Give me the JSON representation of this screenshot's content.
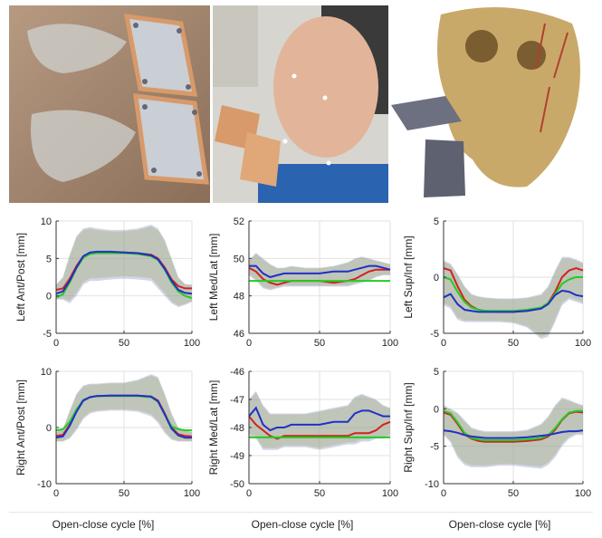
{
  "photos": [
    {
      "name": "mouthguard-plates-photo"
    },
    {
      "name": "subject-with-jaw-tracking-plates-photo"
    },
    {
      "name": "skull-3d-model-render"
    }
  ],
  "xlabels": [
    "Open-close cycle [%]",
    "Open-close cycle [%]",
    "Open-close cycle [%]"
  ],
  "colors": {
    "red": "#d42020",
    "green": "#22cc22",
    "blue": "#2030c8"
  },
  "chart_data": [
    {
      "type": "line",
      "ylabel": "Left Ant/Post [mm]",
      "ylim": [
        -5,
        10
      ],
      "yticks": [
        -5,
        0,
        5,
        10
      ],
      "xlim": [
        0,
        100
      ],
      "xticks": [
        0,
        50,
        100
      ],
      "grid": true,
      "x": [
        0,
        5,
        10,
        15,
        20,
        25,
        30,
        40,
        50,
        60,
        70,
        75,
        80,
        85,
        90,
        95,
        100
      ],
      "series": [
        {
          "color": "red",
          "values": [
            0.8,
            1.0,
            2.3,
            4.0,
            5.3,
            5.7,
            5.8,
            5.8,
            5.8,
            5.7,
            5.5,
            5.0,
            3.8,
            2.2,
            1.3,
            1.0,
            1.0
          ]
        },
        {
          "color": "green",
          "values": [
            -0.2,
            0.2,
            1.8,
            3.7,
            5.1,
            5.6,
            5.7,
            5.7,
            5.7,
            5.6,
            5.3,
            4.8,
            3.5,
            1.8,
            0.6,
            0.0,
            -0.3
          ]
        },
        {
          "color": "blue",
          "values": [
            0.3,
            0.6,
            2.0,
            3.8,
            5.3,
            5.8,
            5.9,
            5.9,
            5.8,
            5.7,
            5.4,
            4.9,
            3.6,
            2.0,
            0.8,
            0.4,
            0.3
          ]
        }
      ],
      "band": {
        "upper": [
          1.5,
          2.5,
          5.5,
          8.0,
          9.0,
          9.2,
          9.0,
          8.8,
          8.8,
          9.0,
          9.5,
          9.0,
          7.5,
          5.0,
          2.5,
          1.6,
          1.5
        ],
        "lower": [
          -0.5,
          -0.5,
          -1.0,
          0.0,
          1.5,
          2.0,
          2.0,
          2.2,
          2.3,
          2.2,
          2.0,
          1.0,
          0.0,
          -1.0,
          -1.5,
          -1.2,
          -0.8
        ]
      }
    },
    {
      "type": "line",
      "ylabel": "Left Med/Lat [mm]",
      "ylim": [
        46,
        52
      ],
      "yticks": [
        46,
        48,
        50,
        52
      ],
      "xlim": [
        0,
        100
      ],
      "xticks": [
        0,
        50,
        100
      ],
      "grid": true,
      "x": [
        0,
        5,
        10,
        15,
        20,
        25,
        30,
        40,
        50,
        60,
        70,
        75,
        80,
        85,
        90,
        95,
        100
      ],
      "series": [
        {
          "color": "red",
          "values": [
            49.5,
            49.3,
            48.9,
            48.7,
            48.6,
            48.7,
            48.8,
            48.8,
            48.8,
            48.7,
            48.8,
            48.9,
            49.1,
            49.3,
            49.4,
            49.4,
            49.4
          ]
        },
        {
          "color": "green",
          "values": [
            48.8,
            48.8,
            48.8,
            48.8,
            48.8,
            48.8,
            48.8,
            48.8,
            48.8,
            48.8,
            48.8,
            48.8,
            48.8,
            48.8,
            48.8,
            48.8,
            48.8
          ]
        },
        {
          "color": "blue",
          "values": [
            49.6,
            49.6,
            49.2,
            49.0,
            49.1,
            49.2,
            49.2,
            49.2,
            49.2,
            49.3,
            49.3,
            49.4,
            49.5,
            49.6,
            49.6,
            49.5,
            49.4
          ]
        }
      ],
      "band": {
        "upper": [
          49.9,
          50.3,
          50.0,
          49.7,
          49.5,
          49.5,
          49.6,
          49.5,
          49.5,
          49.6,
          49.8,
          50.0,
          50.1,
          50.0,
          49.9,
          49.8,
          49.7
        ],
        "lower": [
          49.1,
          48.8,
          48.4,
          48.3,
          48.4,
          48.5,
          48.5,
          48.5,
          48.5,
          48.5,
          48.5,
          48.6,
          48.7,
          48.8,
          49.0,
          49.1,
          49.1
        ]
      }
    },
    {
      "type": "line",
      "ylabel": "Left Sup/Inf [mm]",
      "ylim": [
        -5,
        5
      ],
      "yticks": [
        -5,
        0,
        5
      ],
      "xlim": [
        0,
        100
      ],
      "xticks": [
        0,
        50,
        100
      ],
      "grid": true,
      "x": [
        0,
        5,
        10,
        15,
        20,
        25,
        30,
        40,
        50,
        60,
        70,
        75,
        80,
        85,
        90,
        95,
        100
      ],
      "series": [
        {
          "color": "red",
          "values": [
            0.8,
            0.6,
            -0.8,
            -2.0,
            -2.6,
            -2.9,
            -3.0,
            -3.1,
            -3.1,
            -3.0,
            -2.8,
            -2.3,
            -1.3,
            0.0,
            0.6,
            0.8,
            0.6
          ]
        },
        {
          "color": "green",
          "values": [
            0.0,
            -0.2,
            -1.3,
            -2.2,
            -2.7,
            -2.9,
            -3.0,
            -3.0,
            -3.0,
            -2.9,
            -2.7,
            -2.3,
            -1.5,
            -0.6,
            -0.2,
            0.0,
            0.0
          ]
        },
        {
          "color": "blue",
          "values": [
            -1.8,
            -1.5,
            -2.4,
            -2.9,
            -3.0,
            -3.1,
            -3.1,
            -3.1,
            -3.1,
            -3.0,
            -2.8,
            -2.4,
            -1.6,
            -1.2,
            -1.3,
            -1.6,
            -1.7
          ]
        }
      ],
      "band": {
        "upper": [
          1.5,
          1.2,
          0.3,
          -0.8,
          -1.5,
          -1.7,
          -1.8,
          -1.9,
          -1.9,
          -1.8,
          -1.5,
          -0.8,
          0.6,
          1.8,
          1.8,
          1.6,
          1.3
        ]
      },
      "band_lower_note": "",
      "band_lower": [
        -2.5,
        -2.8,
        -3.8,
        -4.0,
        -4.0,
        -4.0,
        -4.0,
        -4.0,
        -4.1,
        -4.5,
        -5.5,
        -5.3,
        -4.0,
        -2.5,
        -2.0,
        -2.2,
        -2.4
      ]
    },
    {
      "type": "line",
      "ylabel": "Right Ant/Post [mm]",
      "ylim": [
        -10,
        10
      ],
      "yticks": [
        -10,
        0,
        10
      ],
      "xlim": [
        0,
        100
      ],
      "xticks": [
        0,
        50,
        100
      ],
      "grid": true,
      "x": [
        0,
        5,
        10,
        15,
        20,
        25,
        30,
        40,
        50,
        60,
        70,
        75,
        80,
        85,
        90,
        95,
        100
      ],
      "series": [
        {
          "color": "red",
          "values": [
            -1.5,
            -1.3,
            0.5,
            3.0,
            4.8,
            5.4,
            5.6,
            5.7,
            5.7,
            5.7,
            5.5,
            4.8,
            2.5,
            0.0,
            -1.2,
            -1.5,
            -1.6
          ]
        },
        {
          "color": "green",
          "values": [
            -0.5,
            -0.3,
            1.0,
            3.2,
            4.9,
            5.4,
            5.6,
            5.6,
            5.6,
            5.6,
            5.4,
            4.6,
            2.3,
            0.2,
            -0.3,
            -0.5,
            -0.5
          ]
        },
        {
          "color": "blue",
          "values": [
            -1.8,
            -1.6,
            0.3,
            2.8,
            4.8,
            5.4,
            5.6,
            5.7,
            5.7,
            5.7,
            5.5,
            4.7,
            2.3,
            -0.2,
            -1.4,
            -1.8,
            -1.8
          ]
        }
      ],
      "band": {
        "upper": [
          -0.8,
          -0.3,
          3.0,
          6.0,
          7.5,
          7.8,
          7.8,
          8.0,
          8.0,
          8.5,
          9.5,
          9.0,
          6.0,
          2.5,
          0.0,
          -0.5,
          -0.8
        ]
      },
      "band_lower": [
        -2.5,
        -2.5,
        -2.0,
        -0.5,
        1.5,
        2.5,
        2.8,
        3.0,
        3.0,
        2.8,
        2.0,
        0.8,
        -1.0,
        -2.2,
        -2.5,
        -2.5,
        -2.5
      ]
    },
    {
      "type": "line",
      "ylabel": "Right Med/Lat [mm]",
      "ylim": [
        -50,
        -46
      ],
      "yticks": [
        -50,
        -49,
        -48,
        -47,
        -46
      ],
      "xlim": [
        0,
        100
      ],
      "xticks": [
        0,
        50,
        100
      ],
      "grid": true,
      "x": [
        0,
        5,
        10,
        15,
        20,
        25,
        30,
        40,
        50,
        60,
        70,
        75,
        80,
        85,
        90,
        95,
        100
      ],
      "series": [
        {
          "color": "red",
          "values": [
            -47.6,
            -47.9,
            -48.1,
            -48.3,
            -48.4,
            -48.3,
            -48.3,
            -48.3,
            -48.3,
            -48.3,
            -48.3,
            -48.2,
            -48.2,
            -48.2,
            -48.1,
            -47.9,
            -47.8
          ]
        },
        {
          "color": "green",
          "values": [
            -48.35,
            -48.35,
            -48.35,
            -48.35,
            -48.35,
            -48.35,
            -48.35,
            -48.35,
            -48.35,
            -48.35,
            -48.35,
            -48.35,
            -48.35,
            -48.35,
            -48.35,
            -48.35,
            -48.35
          ]
        },
        {
          "color": "blue",
          "values": [
            -47.6,
            -47.3,
            -47.9,
            -48.1,
            -48.0,
            -48.0,
            -47.9,
            -47.9,
            -47.9,
            -47.8,
            -47.8,
            -47.5,
            -47.4,
            -47.4,
            -47.5,
            -47.6,
            -47.6
          ]
        }
      ],
      "band": {
        "upper": [
          -47.0,
          -46.7,
          -47.2,
          -47.5,
          -47.5,
          -47.5,
          -47.5,
          -47.5,
          -47.4,
          -47.3,
          -47.2,
          -46.9,
          -46.8,
          -46.9,
          -47.0,
          -47.2,
          -47.3
        ]
      },
      "band_lower": [
        -48.3,
        -48.4,
        -48.8,
        -48.8,
        -48.8,
        -48.7,
        -48.7,
        -48.7,
        -48.8,
        -48.7,
        -48.6,
        -48.6,
        -48.5,
        -48.5,
        -48.4,
        -48.4,
        -48.3
      ]
    },
    {
      "type": "line",
      "ylabel": "Right Sup/Inf [mm]",
      "ylim": [
        -10,
        5
      ],
      "yticks": [
        -10,
        -5,
        0,
        5
      ],
      "xlim": [
        0,
        100
      ],
      "xticks": [
        0,
        50,
        100
      ],
      "grid": true,
      "x": [
        0,
        5,
        10,
        15,
        20,
        25,
        30,
        40,
        50,
        60,
        70,
        75,
        80,
        85,
        90,
        95,
        100
      ],
      "series": [
        {
          "color": "red",
          "values": [
            -0.5,
            -0.8,
            -2.0,
            -3.4,
            -4.0,
            -4.3,
            -4.4,
            -4.4,
            -4.4,
            -4.3,
            -4.1,
            -3.7,
            -2.8,
            -1.5,
            -0.6,
            -0.4,
            -0.5
          ]
        },
        {
          "color": "green",
          "values": [
            -0.3,
            -0.6,
            -1.8,
            -3.2,
            -3.9,
            -4.1,
            -4.2,
            -4.2,
            -4.2,
            -4.1,
            -3.9,
            -3.5,
            -2.6,
            -1.4,
            -0.5,
            -0.3,
            -0.3
          ]
        },
        {
          "color": "blue",
          "values": [
            -2.9,
            -3.0,
            -3.2,
            -3.5,
            -3.7,
            -3.8,
            -3.9,
            -3.9,
            -3.9,
            -3.8,
            -3.6,
            -3.5,
            -3.3,
            -3.1,
            -3.0,
            -3.0,
            -2.9
          ]
        }
      ],
      "band": {
        "upper": [
          0.5,
          0.0,
          -0.5,
          -1.5,
          -2.5,
          -2.8,
          -3.0,
          -3.0,
          -3.0,
          -2.8,
          -2.0,
          -1.0,
          0.5,
          1.5,
          1.2,
          0.8,
          0.5
        ]
      },
      "band_lower": [
        -3.5,
        -4.5,
        -6.5,
        -7.5,
        -7.8,
        -7.8,
        -7.8,
        -7.6,
        -7.6,
        -7.8,
        -8.0,
        -7.5,
        -6.5,
        -5.0,
        -4.0,
        -3.5,
        -3.5
      ]
    }
  ]
}
